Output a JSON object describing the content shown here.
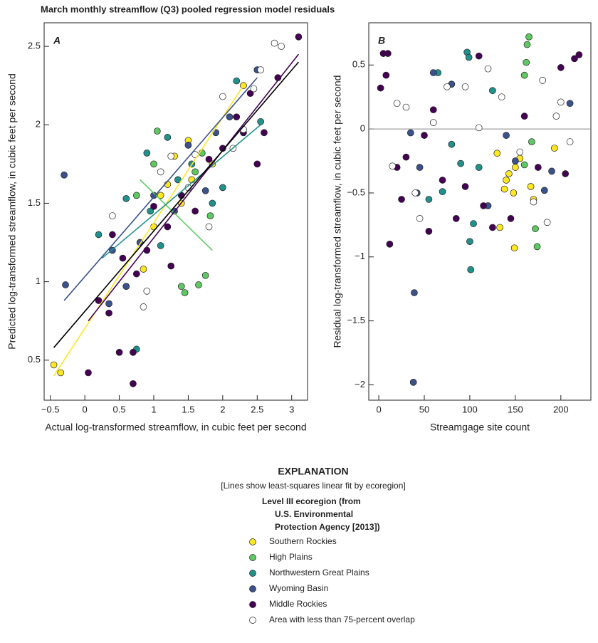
{
  "title": "March monthly streamflow (Q3) pooled regression model residuals",
  "explanation": {
    "heading": "EXPLANATION",
    "note": "[Lines show least-squares linear fit by ecoregion]"
  },
  "chart_data": [
    {
      "type": "scatter",
      "label": "A",
      "x_label": "Actual log-transformed streamflow, in cubic feet per second",
      "y_label": "Predicted log-transformed streamflow, in cubic feet per second",
      "legend_title": [
        "Level III ecoregion (from",
        "U.S. Environmental",
        "Protection Agency [2013])"
      ],
      "xlim": [
        -0.59,
        3.23
      ],
      "ylim": [
        0.245,
        2.65
      ],
      "xticks": [
        {
          "value": -0.5,
          "label": "−0.5"
        },
        0,
        0.5,
        1,
        1.5,
        2,
        2.5,
        3
      ],
      "yticks": [
        0.5,
        1,
        1.5,
        2,
        2.5
      ],
      "series": [
        {
          "name": "Southern Rockies",
          "color": "#fde725",
          "x": [
            -0.45,
            -0.35,
            0.85,
            1.0,
            1.2,
            1.3,
            1.5,
            1.55,
            1.85,
            2.3,
            1.4,
            1.1
          ],
          "values": [
            0.47,
            0.42,
            1.08,
            1.35,
            1.62,
            1.8,
            1.9,
            1.65,
            1.75,
            2.25,
            1.5,
            1.55
          ]
        },
        {
          "name": "High Plains",
          "color": "#5ec962",
          "x": [
            0.75,
            1.05,
            1.0,
            1.4,
            1.45,
            1.75,
            1.65,
            1.82,
            1.7,
            1.6
          ],
          "values": [
            1.55,
            1.96,
            1.75,
            0.97,
            0.93,
            1.04,
            0.98,
            1.42,
            1.82,
            1.7
          ]
        },
        {
          "name": "Northwestern Great Plains",
          "color": "#21918c",
          "x": [
            0.2,
            0.6,
            0.75,
            0.9,
            1.2,
            1.55,
            2.2,
            2.0,
            1.85,
            2.55,
            1.1,
            1.35,
            0.95
          ],
          "values": [
            1.3,
            1.53,
            0.57,
            1.82,
            1.92,
            1.75,
            2.28,
            1.6,
            1.5,
            2.02,
            1.23,
            1.65,
            1.45
          ]
        },
        {
          "name": "Wyoming Basin",
          "color": "#3b528b",
          "x": [
            -0.3,
            -0.28,
            0.35,
            0.4,
            0.6,
            1.0,
            1.5,
            1.75,
            2.5,
            1.3,
            0.8,
            1.9,
            2.1
          ],
          "values": [
            1.68,
            0.98,
            0.86,
            1.2,
            0.97,
            1.55,
            1.87,
            1.58,
            2.35,
            1.45,
            1.25,
            1.95,
            2.05
          ]
        },
        {
          "name": "Middle Rockies",
          "color": "#440154",
          "x": [
            0.05,
            0.2,
            0.35,
            0.4,
            0.5,
            0.55,
            0.7,
            0.7,
            0.75,
            1.0,
            1.2,
            1.4,
            1.6,
            1.8,
            2.0,
            2.2,
            2.4,
            2.6,
            2.8,
            3.1,
            2.5,
            1.25,
            0.9,
            2.3
          ],
          "values": [
            0.42,
            0.88,
            0.8,
            1.3,
            0.55,
            1.15,
            0.35,
            0.55,
            1.05,
            1.48,
            1.35,
            1.55,
            1.45,
            1.78,
            1.85,
            2.05,
            2.2,
            1.95,
            2.3,
            2.56,
            1.75,
            1.1,
            1.2,
            1.95
          ]
        },
        {
          "name": "Area with less than 75-percent overlap",
          "color": "#ffffff",
          "x": [
            0.4,
            0.9,
            0.85,
            1.1,
            1.5,
            1.8,
            2.0,
            2.3,
            2.55,
            2.75,
            2.85,
            2.45,
            2.15,
            1.25,
            1.6
          ],
          "values": [
            1.42,
            0.94,
            0.84,
            1.7,
            1.6,
            1.35,
            2.18,
            1.97,
            2.35,
            2.52,
            2.5,
            2.23,
            1.85,
            1.8,
            1.81
          ]
        }
      ],
      "fit_lines": [
        {
          "color": "#fde725",
          "x": [
            -0.45,
            2.3
          ],
          "y": [
            0.4,
            2.25
          ]
        },
        {
          "color": "#5ec962",
          "x": [
            0.8,
            1.85
          ],
          "y": [
            1.65,
            1.2
          ]
        },
        {
          "color": "#21918c",
          "x": [
            0.25,
            2.55
          ],
          "y": [
            1.15,
            2.0
          ]
        },
        {
          "color": "#3b528b",
          "x": [
            -0.3,
            2.5
          ],
          "y": [
            0.88,
            2.3
          ]
        },
        {
          "color": "#440154",
          "x": [
            0.05,
            3.1
          ],
          "y": [
            0.75,
            2.45
          ]
        },
        {
          "color": "#000000",
          "x": [
            -0.45,
            3.1
          ],
          "y": [
            0.58,
            2.4
          ]
        }
      ]
    },
    {
      "type": "scatter",
      "label": "B",
      "x_label": "Streamgage site count",
      "y_label": "Residual log-transformed streamflow, in cubic feet per second",
      "xlim": [
        -11,
        233
      ],
      "ylim": [
        -2.12,
        0.83
      ],
      "xticks": [
        0,
        50,
        100,
        150,
        200
      ],
      "yticks": [
        {
          "value": -2,
          "label": "−2"
        },
        {
          "value": -1.5,
          "label": "−1.5"
        },
        {
          "value": -1,
          "label": "−1"
        },
        {
          "value": -0.5,
          "label": "−0.5"
        },
        0,
        0.5
      ],
      "reference_line": 0,
      "series": [
        {
          "name": "Southern Rockies",
          "color": "#fde725",
          "x": [
            130,
            133,
            138,
            143,
            148,
            149,
            150,
            155,
            167,
            170,
            193,
            140
          ],
          "values": [
            -0.19,
            -0.77,
            -0.47,
            -0.35,
            -0.5,
            -0.93,
            -0.3,
            -0.23,
            -0.45,
            -0.55,
            -0.15,
            -0.4
          ]
        },
        {
          "name": "High Plains",
          "color": "#5ec962",
          "x": [
            160,
            163,
            165,
            162,
            168,
            172,
            174,
            160
          ],
          "values": [
            0.42,
            0.66,
            0.72,
            0.52,
            -0.1,
            -0.78,
            -0.92,
            -0.28
          ]
        },
        {
          "name": "Northwestern Great Plains",
          "color": "#21918c",
          "x": [
            97,
            99,
            100,
            101,
            104,
            65,
            70,
            80,
            110,
            125,
            90,
            55
          ],
          "values": [
            0.6,
            0.56,
            -0.88,
            -1.1,
            -0.74,
            0.44,
            -0.49,
            -0.12,
            -0.3,
            0.3,
            -0.27,
            -0.55
          ]
        },
        {
          "name": "Wyoming Basin",
          "color": "#3b528b",
          "x": [
            38,
            39,
            42,
            45,
            60,
            80,
            140,
            150,
            182,
            190,
            210,
            35,
            120
          ],
          "values": [
            -1.98,
            -1.28,
            -0.5,
            -0.3,
            0.44,
            0.35,
            -0.05,
            -0.25,
            -0.48,
            -0.33,
            0.2,
            -0.03,
            -0.6
          ]
        },
        {
          "name": "Middle Rockies",
          "color": "#440154",
          "x": [
            5,
            10,
            12,
            20,
            25,
            30,
            50,
            55,
            60,
            70,
            85,
            95,
            110,
            115,
            125,
            145,
            160,
            175,
            200,
            215,
            220,
            205,
            2,
            8
          ],
          "values": [
            0.59,
            0.59,
            -0.9,
            -0.3,
            -0.55,
            -0.22,
            -0.05,
            -0.8,
            0.15,
            -0.4,
            -0.7,
            -0.45,
            0.57,
            -0.6,
            -0.77,
            -0.7,
            0.1,
            -0.3,
            0.48,
            0.55,
            0.58,
            -0.35,
            0.32,
            0.42
          ]
        },
        {
          "name": "Area with less than 75-percent overlap",
          "color": "#ffffff",
          "x": [
            15,
            20,
            30,
            45,
            60,
            75,
            95,
            120,
            135,
            155,
            170,
            180,
            185,
            195,
            200,
            210,
            40,
            110
          ],
          "values": [
            -0.29,
            0.2,
            0.17,
            -0.7,
            0.05,
            0.33,
            0.33,
            0.47,
            0.25,
            -0.18,
            -0.57,
            0.38,
            -0.73,
            0.1,
            0.21,
            -0.1,
            -0.5,
            0.01
          ]
        }
      ]
    }
  ]
}
